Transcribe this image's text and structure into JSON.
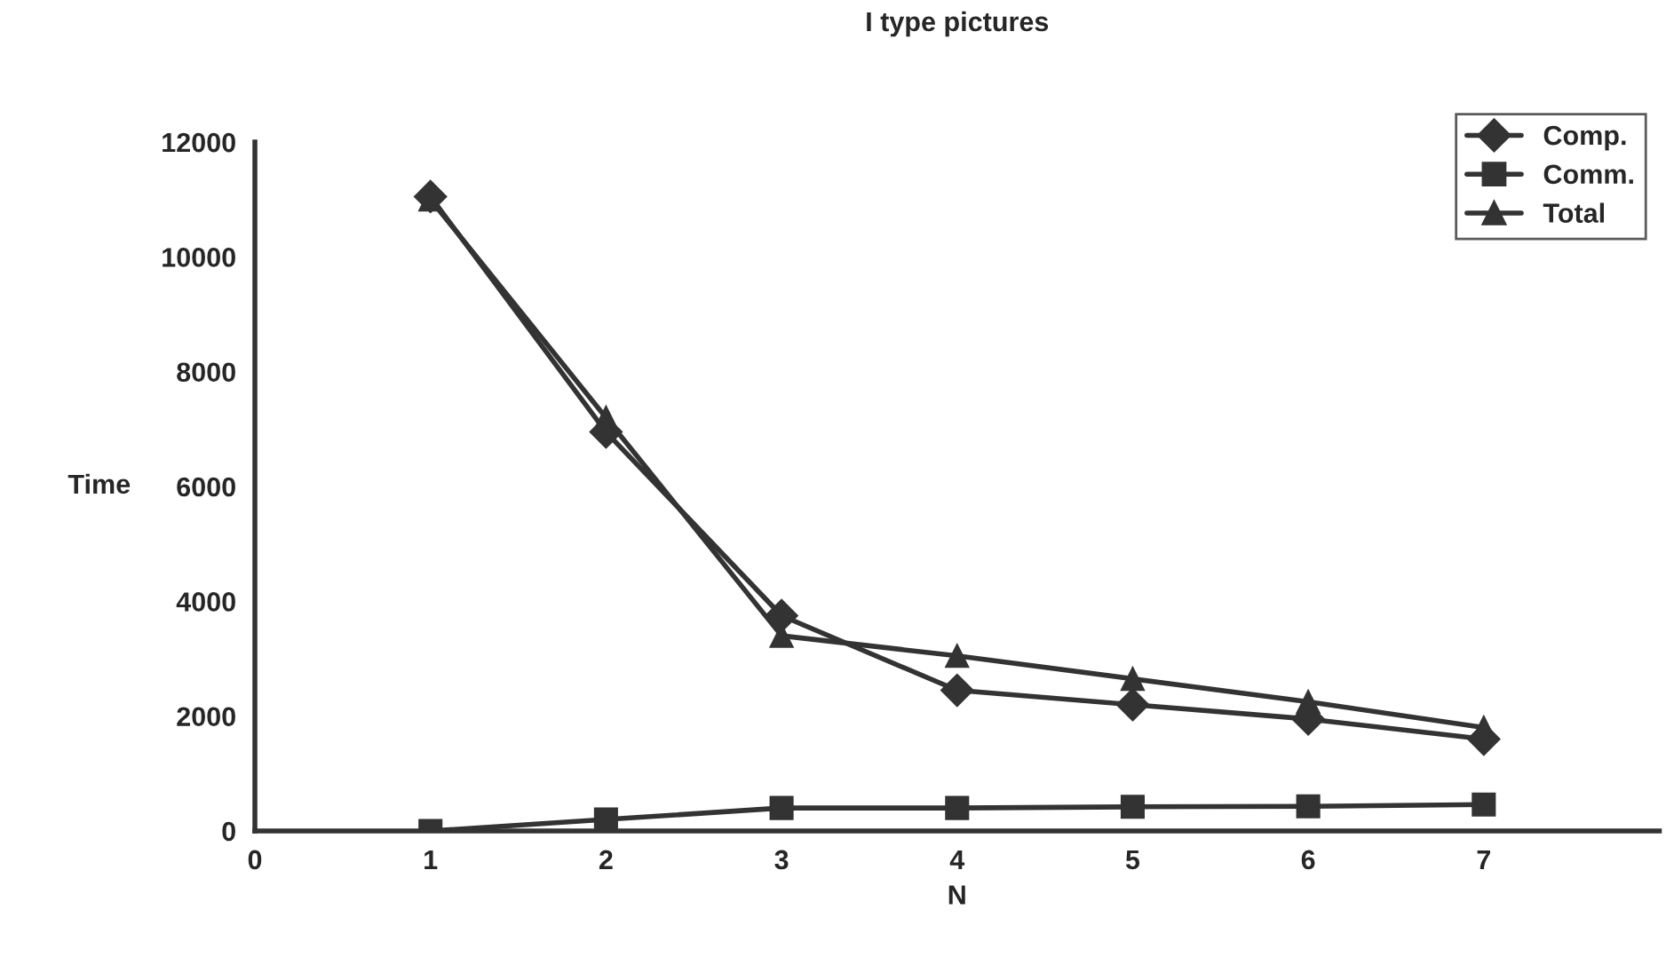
{
  "chart_data": {
    "type": "line",
    "title": "I type pictures",
    "xlabel": "N",
    "ylabel": "Time",
    "x": [
      1,
      2,
      3,
      4,
      5,
      6,
      7
    ],
    "series": [
      {
        "name": "Comp.",
        "color": "#333333",
        "marker": "diamond",
        "values": [
          11050,
          6950,
          3750,
          2450,
          2200,
          1950,
          1600
        ]
      },
      {
        "name": "Comm.",
        "color": "#333333",
        "marker": "square",
        "values": [
          0,
          200,
          400,
          400,
          420,
          430,
          460
        ]
      },
      {
        "name": "Total",
        "color": "#333333",
        "marker": "triangle",
        "values": [
          11000,
          7200,
          3400,
          3050,
          2650,
          2250,
          1800
        ]
      }
    ],
    "xlim": [
      0,
      8
    ],
    "xticks": [
      0,
      1,
      2,
      3,
      4,
      5,
      6,
      7
    ],
    "ylim": [
      0,
      12000
    ],
    "yticks": [
      0,
      2000,
      4000,
      6000,
      8000,
      10000,
      12000
    ],
    "grid": false,
    "legend": "top right",
    "line_style": "solid"
  }
}
